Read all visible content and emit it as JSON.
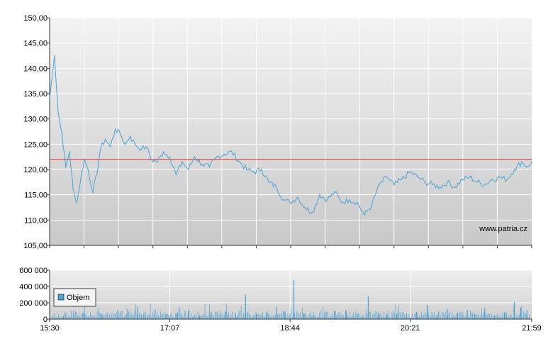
{
  "chart_data": [
    {
      "type": "line",
      "title": "",
      "ylabel": "",
      "xlabel": "",
      "ylim": [
        105,
        150
      ],
      "yticks": [
        "105,00",
        "110,00",
        "115,00",
        "120,00",
        "125,00",
        "130,00",
        "135,00",
        "140,00",
        "145,00",
        "150,00"
      ],
      "reference_line": 122.0,
      "line_color": "#4aa3d6",
      "reference_color": "#e03030",
      "watermark": "www.patria.cz",
      "x": [
        "15:30",
        "15:34",
        "15:37",
        "15:40",
        "15:43",
        "15:46",
        "15:49",
        "15:52",
        "15:55",
        "15:58",
        "16:01",
        "16:05",
        "16:08",
        "16:11",
        "16:15",
        "16:19",
        "16:23",
        "16:27",
        "16:31",
        "16:35",
        "16:39",
        "16:44",
        "16:48",
        "16:52",
        "16:57",
        "17:02",
        "17:07",
        "17:12",
        "17:17",
        "17:22",
        "17:27",
        "17:33",
        "17:39",
        "17:45",
        "17:51",
        "17:57",
        "18:03",
        "18:09",
        "18:15",
        "18:21",
        "18:27",
        "18:33",
        "18:39",
        "18:44",
        "18:50",
        "18:56",
        "19:02",
        "19:08",
        "19:14",
        "19:20",
        "19:26",
        "19:32",
        "19:38",
        "19:44",
        "19:50",
        "19:56",
        "20:02",
        "20:08",
        "20:14",
        "20:21",
        "20:27",
        "20:33",
        "20:39",
        "20:45",
        "20:51",
        "20:57",
        "21:03",
        "21:09",
        "21:15",
        "21:21",
        "21:27",
        "21:33",
        "21:39",
        "21:45",
        "21:51",
        "21:55",
        "21:59"
      ],
      "values": [
        134.0,
        142.5,
        131.0,
        127.0,
        120.5,
        123.5,
        116.0,
        113.5,
        118.0,
        122.0,
        120.0,
        115.5,
        119.0,
        124.0,
        126.0,
        124.5,
        128.0,
        127.0,
        125.0,
        126.5,
        125.0,
        124.0,
        124.5,
        122.0,
        121.5,
        123.5,
        122.5,
        119.0,
        121.5,
        120.0,
        122.5,
        121.0,
        120.5,
        122.5,
        123.0,
        123.5,
        121.5,
        120.0,
        119.5,
        120.0,
        117.5,
        116.5,
        114.0,
        113.5,
        114.5,
        112.5,
        111.5,
        115.0,
        114.0,
        115.5,
        113.5,
        114.0,
        113.5,
        111.0,
        113.0,
        117.0,
        118.5,
        117.0,
        118.0,
        119.5,
        118.5,
        117.5,
        117.0,
        116.5,
        117.5,
        116.5,
        118.0,
        118.5,
        117.5,
        117.0,
        118.0,
        118.5,
        118.0,
        120.0,
        121.5,
        120.5,
        121.5
      ]
    },
    {
      "type": "bar",
      "title": "",
      "ylim": [
        0,
        600000
      ],
      "yticks": [
        "0",
        "200 000",
        "400 000",
        "600 000"
      ],
      "xticks": [
        "15:30",
        "17:07",
        "18:44",
        "20:21",
        "21:59"
      ],
      "legend": "Objem",
      "legend_position": "left",
      "bar_color": "#4aa3d6",
      "x": [
        "15:41",
        "15:58",
        "16:12",
        "16:25",
        "16:33",
        "16:41",
        "16:47",
        "16:55",
        "17:04",
        "17:13",
        "17:22",
        "17:31",
        "17:40",
        "17:52",
        "18:00",
        "18:08",
        "18:17",
        "18:25",
        "18:33",
        "18:40",
        "18:47",
        "18:55",
        "19:03",
        "19:12",
        "19:20",
        "19:29",
        "19:38",
        "19:47",
        "19:55",
        "20:02",
        "20:10",
        "20:18",
        "20:26",
        "20:35",
        "20:43",
        "20:51",
        "20:59",
        "21:07",
        "21:13",
        "21:21",
        "21:29",
        "21:37",
        "21:45",
        "21:50",
        "21:55"
      ],
      "values": [
        40000,
        70000,
        60000,
        110000,
        130000,
        150000,
        90000,
        120000,
        60000,
        80000,
        110000,
        50000,
        40000,
        90000,
        70000,
        300000,
        60000,
        80000,
        150000,
        90000,
        480000,
        60000,
        40000,
        80000,
        100000,
        110000,
        60000,
        280000,
        80000,
        50000,
        60000,
        70000,
        90000,
        160000,
        60000,
        120000,
        80000,
        110000,
        60000,
        140000,
        50000,
        80000,
        210000,
        140000,
        110000
      ]
    }
  ]
}
